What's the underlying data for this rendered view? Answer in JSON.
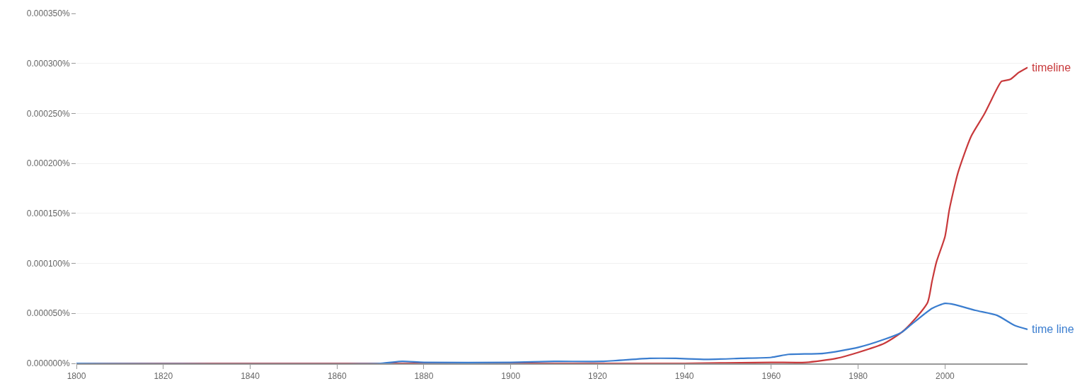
{
  "chart_data": {
    "type": "line",
    "xlim": [
      1800,
      2019
    ],
    "xticks": [
      1800,
      1820,
      1840,
      1860,
      1880,
      1900,
      1920,
      1940,
      1960,
      1980,
      2000
    ],
    "ylim": [
      0,
      0.00035
    ],
    "yticks": [
      {
        "value": 0,
        "label": "0.000000%"
      },
      {
        "value": 5e-05,
        "label": "0.000050%"
      },
      {
        "value": 0.0001,
        "label": "0.000100%"
      },
      {
        "value": 0.00015,
        "label": "0.000150%"
      },
      {
        "value": 0.0002,
        "label": "0.000200%"
      },
      {
        "value": 0.00025,
        "label": "0.000250%"
      },
      {
        "value": 0.0003,
        "label": "0.000300%"
      },
      {
        "value": 0.00035,
        "label": "0.000350%"
      }
    ],
    "grid": "y",
    "legend": false,
    "marker": "none",
    "line_style": "solid",
    "series": [
      {
        "name": "timeline",
        "color": "#c8393b",
        "x": [
          1800,
          1850,
          1900,
          1940,
          1960,
          1968,
          1975,
          1980,
          1986,
          1990,
          1993,
          1996,
          1997,
          1998,
          2000,
          2001,
          2003,
          2006,
          2009,
          2012,
          2013,
          2015,
          2017,
          2019
        ],
        "values": [
          0,
          0,
          0,
          0,
          1e-06,
          1e-06,
          5e-06,
          1.1e-05,
          2e-05,
          3.1e-05,
          4.4e-05,
          6.1e-05,
          8.2e-05,
          0.000101,
          0.000127,
          0.000154,
          0.000191,
          0.000227,
          0.000249,
          0.000275,
          0.000282,
          0.000284,
          0.000291,
          0.000296
        ]
      },
      {
        "name": "time line",
        "color": "#3a7dcf",
        "x": [
          1800,
          1870,
          1875,
          1880,
          1900,
          1910,
          1921,
          1932,
          1938,
          1945,
          1953,
          1960,
          1964,
          1972,
          1980,
          1986,
          1990,
          1992,
          1997,
          2000,
          2002,
          2007,
          2012,
          2016,
          2019
        ],
        "values": [
          0,
          0,
          2e-06,
          1e-06,
          1e-06,
          2e-06,
          2e-06,
          5e-06,
          5e-06,
          4e-06,
          5e-06,
          6e-06,
          9e-06,
          1e-05,
          1.6e-05,
          2.4e-05,
          3.1e-05,
          3.8e-05,
          5.5e-05,
          6e-05,
          5.9e-05,
          5.3e-05,
          4.8e-05,
          3.8e-05,
          3.4e-05
        ]
      }
    ]
  }
}
